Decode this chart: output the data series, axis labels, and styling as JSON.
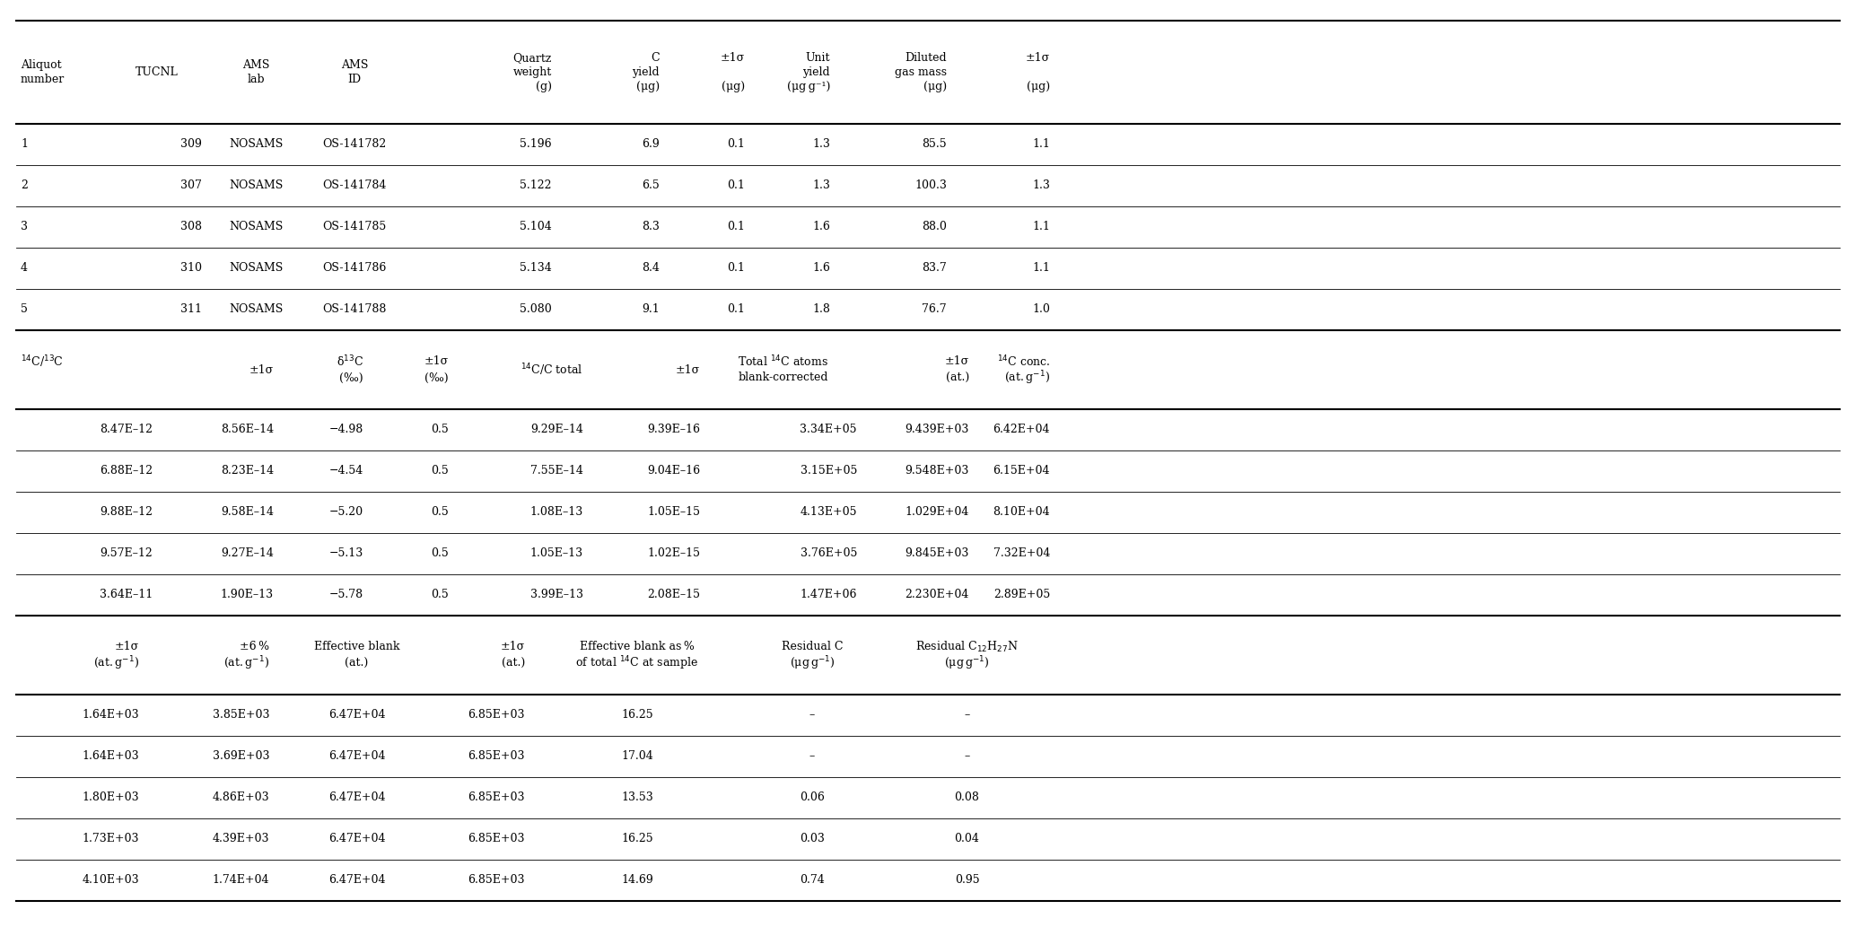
{
  "background_color": "#ffffff",
  "font_size": 9.0,
  "section1_data": [
    [
      "1",
      "309",
      "NOSAMS",
      "OS-141782",
      "5.196",
      "6.9",
      "0.1",
      "1.3",
      "85.5",
      "1.1"
    ],
    [
      "2",
      "307",
      "NOSAMS",
      "OS-141784",
      "5.122",
      "6.5",
      "0.1",
      "1.3",
      "100.3",
      "1.3"
    ],
    [
      "3",
      "308",
      "NOSAMS",
      "OS-141785",
      "5.104",
      "8.3",
      "0.1",
      "1.6",
      "88.0",
      "1.1"
    ],
    [
      "4",
      "310",
      "NOSAMS",
      "OS-141786",
      "5.134",
      "8.4",
      "0.1",
      "1.6",
      "83.7",
      "1.1"
    ],
    [
      "5",
      "311",
      "NOSAMS",
      "OS-141788",
      "5.080",
      "9.1",
      "0.1",
      "1.8",
      "76.7",
      "1.0"
    ]
  ],
  "section2_data": [
    [
      "8.47E–12",
      "8.56E–14",
      "−4.98",
      "0.5",
      "9.29E–14",
      "9.39E–16",
      "3.34E+05",
      "9.439E+03",
      "6.42E+04"
    ],
    [
      "6.88E–12",
      "8.23E–14",
      "−4.54",
      "0.5",
      "7.55E–14",
      "9.04E–16",
      "3.15E+05",
      "9.548E+03",
      "6.15E+04"
    ],
    [
      "9.88E–12",
      "9.58E–14",
      "−5.20",
      "0.5",
      "1.08E–13",
      "1.05E–15",
      "4.13E+05",
      "1.029E+04",
      "8.10E+04"
    ],
    [
      "9.57E–12",
      "9.27E–14",
      "−5.13",
      "0.5",
      "1.05E–13",
      "1.02E–15",
      "3.76E+05",
      "9.845E+03",
      "7.32E+04"
    ],
    [
      "3.64E–11",
      "1.90E–13",
      "−5.78",
      "0.5",
      "3.99E–13",
      "2.08E–15",
      "1.47E+06",
      "2.230E+04",
      "2.89E+05"
    ]
  ],
  "section3_data": [
    [
      "1.64E+03",
      "3.85E+03",
      "6.47E+04",
      "6.85E+03",
      "16.25",
      "–",
      "–"
    ],
    [
      "1.64E+03",
      "3.69E+03",
      "6.47E+04",
      "6.85E+03",
      "17.04",
      "–",
      "–"
    ],
    [
      "1.80E+03",
      "4.86E+03",
      "6.47E+04",
      "6.85E+03",
      "13.53",
      "0.06",
      "0.08"
    ],
    [
      "1.73E+03",
      "4.39E+03",
      "6.47E+04",
      "6.85E+03",
      "16.25",
      "0.03",
      "0.04"
    ],
    [
      "4.10E+03",
      "1.74E+04",
      "6.47E+04",
      "6.85E+03",
      "14.69",
      "0.74",
      "0.95"
    ]
  ]
}
